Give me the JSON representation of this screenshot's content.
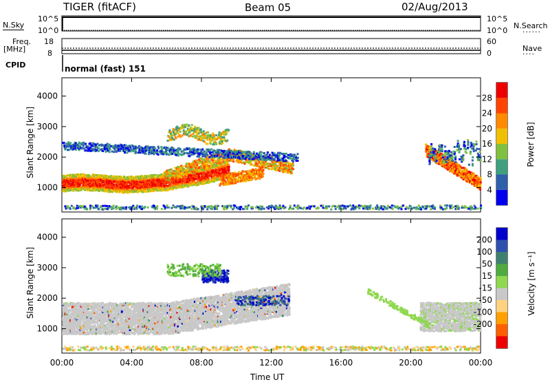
{
  "header": {
    "radar": "TIGER (fitACF)",
    "beam": "Beam 05",
    "date": "02/Aug/2013"
  },
  "top_strip": {
    "nsky_label": "N.Sky",
    "nsearch_label": "N.Search",
    "left_ticks": [
      "10^5",
      "10^0"
    ],
    "right_ticks": [
      "10^5",
      "10^0"
    ],
    "freq_label": "Freq.",
    "freq_unit": "[MHz]",
    "freq_ticks": [
      "18",
      "8"
    ],
    "nave_label": "Nave",
    "nave_ticks": [
      "60",
      "0"
    ],
    "cpid_label": "CPID",
    "cpid_value": "normal (fast) 151"
  },
  "colors": {
    "power": [
      "#0000ee",
      "#2f5faa",
      "#3f9f7f",
      "#7fc03f",
      "#f0c000",
      "#ff8a00",
      "#ff4500",
      "#ee0000"
    ],
    "velocity": [
      "#ee0000",
      "#ff5f00",
      "#ffa000",
      "#ffd27f",
      "#c8c8c8",
      "#8fd84f",
      "#4faa3f",
      "#3f7f6f",
      "#2f4faf",
      "#0000cc"
    ]
  },
  "chart_data": [
    {
      "type": "heatmap",
      "title": "",
      "xlabel": "Time UT",
      "ylabel": "Slant Range [km]",
      "x_ticks": [
        "00:00",
        "04:00",
        "08:00",
        "12:00",
        "16:00",
        "20:00",
        "00:00"
      ],
      "xlim": [
        0,
        24
      ],
      "y_ticks": [
        1000,
        2000,
        3000,
        4000
      ],
      "ylim": [
        200,
        4600
      ],
      "colorbar": {
        "label": "Power [dB]",
        "ticks": [
          4,
          8,
          12,
          16,
          20,
          24,
          28
        ],
        "range": [
          0,
          32
        ]
      },
      "echo_regions": [
        {
          "name": "near-range band",
          "t_start": 0.0,
          "t_end": 9.5,
          "range_km": [
            850,
            1350
          ],
          "power_db": 26
        },
        {
          "name": "rising arc",
          "t_start": 5.5,
          "t_end": 13.2,
          "range_km": [
            1200,
            2300
          ],
          "power_db": 24
        },
        {
          "name": "far band",
          "t_start": 0.0,
          "t_end": 13.5,
          "range_km": [
            2100,
            2500
          ],
          "power_db": 6
        },
        {
          "name": "upper patch",
          "t_start": 6.0,
          "t_end": 9.5,
          "range_km": [
            2500,
            3000
          ],
          "power_db": 18
        },
        {
          "name": "evening arc",
          "t_start": 20.5,
          "t_end": 24.0,
          "range_km": [
            850,
            2300
          ],
          "power_db": 22
        }
      ]
    },
    {
      "type": "heatmap",
      "title": "",
      "xlabel": "Time UT",
      "ylabel": "Slant Range [km]",
      "x_ticks": [
        "00:00",
        "04:00",
        "08:00",
        "12:00",
        "16:00",
        "20:00",
        "00:00"
      ],
      "xlim": [
        0,
        24
      ],
      "y_ticks": [
        1000,
        2000,
        3000,
        4000
      ],
      "ylim": [
        200,
        4600
      ],
      "colorbar": {
        "label": "Velocity [m s⁻¹]",
        "ticks": [
          200,
          100,
          50,
          15,
          -15,
          -50,
          -100,
          -200
        ],
        "range": [
          -250,
          250
        ]
      },
      "echo_regions": [
        {
          "name": "ground scatter",
          "t_start": 0.0,
          "t_end": 13.0,
          "range_km": [
            800,
            2400
          ],
          "velocity": 0
        },
        {
          "name": "blue patch",
          "t_start": 8.0,
          "t_end": 9.5,
          "range_km": [
            2500,
            2900
          ],
          "velocity": 180
        },
        {
          "name": "evening ground scatter",
          "t_start": 20.5,
          "t_end": 24.0,
          "range_km": [
            850,
            1900
          ],
          "velocity": 0
        }
      ]
    }
  ]
}
